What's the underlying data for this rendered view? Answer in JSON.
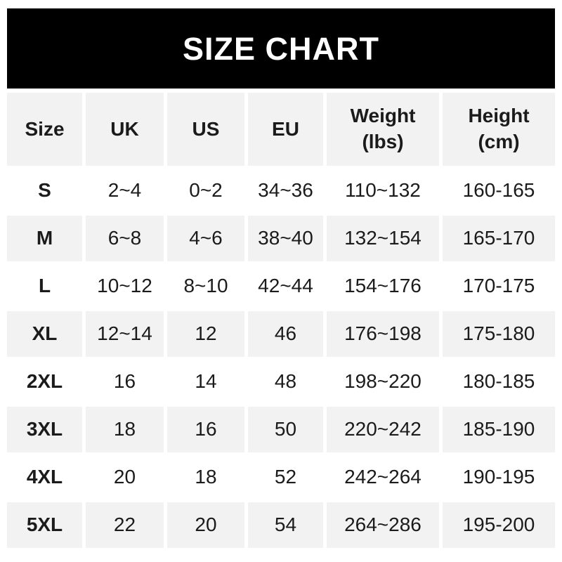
{
  "header": {
    "title": "SIZE CHART"
  },
  "table": {
    "columns": [
      {
        "key": "size",
        "label": "Size",
        "sub": ""
      },
      {
        "key": "uk",
        "label": "UK",
        "sub": ""
      },
      {
        "key": "us",
        "label": "US",
        "sub": ""
      },
      {
        "key": "eu",
        "label": "EU",
        "sub": ""
      },
      {
        "key": "weight",
        "label": "Weight",
        "sub": "(lbs)"
      },
      {
        "key": "height",
        "label": "Height",
        "sub": "(cm)"
      }
    ],
    "rows": [
      {
        "size": "S",
        "uk": "2~4",
        "us": "0~2",
        "eu": "34~36",
        "weight": "110~132",
        "height": "160-165"
      },
      {
        "size": "M",
        "uk": "6~8",
        "us": "4~6",
        "eu": "38~40",
        "weight": "132~154",
        "height": "165-170"
      },
      {
        "size": "L",
        "uk": "10~12",
        "us": "8~10",
        "eu": "42~44",
        "weight": "154~176",
        "height": "170-175"
      },
      {
        "size": "XL",
        "uk": "12~14",
        "us": "12",
        "eu": "46",
        "weight": "176~198",
        "height": "175-180"
      },
      {
        "size": "2XL",
        "uk": "16",
        "us": "14",
        "eu": "48",
        "weight": "198~220",
        "height": "180-185"
      },
      {
        "size": "3XL",
        "uk": "18",
        "us": "16",
        "eu": "50",
        "weight": "220~242",
        "height": "185-190"
      },
      {
        "size": "4XL",
        "uk": "20",
        "us": "18",
        "eu": "52",
        "weight": "242~264",
        "height": "190-195"
      },
      {
        "size": "5XL",
        "uk": "22",
        "us": "20",
        "eu": "54",
        "weight": "264~286",
        "height": "195-200"
      }
    ]
  },
  "colors": {
    "title_bg": "#000000",
    "title_text": "#ffffff",
    "row_alt_bg": "#f2f2f2",
    "row_bg": "#ffffff",
    "text": "#1b1b1b"
  },
  "chart_data": {
    "type": "table",
    "title": "SIZE CHART",
    "columns": [
      "Size",
      "UK",
      "US",
      "EU",
      "Weight (lbs)",
      "Height (cm)"
    ],
    "rows": [
      [
        "S",
        "2~4",
        "0~2",
        "34~36",
        "110~132",
        "160-165"
      ],
      [
        "M",
        "6~8",
        "4~6",
        "38~40",
        "132~154",
        "165-170"
      ],
      [
        "L",
        "10~12",
        "8~10",
        "42~44",
        "154~176",
        "170-175"
      ],
      [
        "XL",
        "12~14",
        "12",
        "46",
        "176~198",
        "175-180"
      ],
      [
        "2XL",
        "16",
        "14",
        "48",
        "198~220",
        "180-185"
      ],
      [
        "3XL",
        "18",
        "16",
        "50",
        "220~242",
        "185-190"
      ],
      [
        "4XL",
        "20",
        "18",
        "52",
        "242~264",
        "190-195"
      ],
      [
        "5XL",
        "22",
        "20",
        "54",
        "264~286",
        "195-200"
      ]
    ],
    "layout": {
      "header_row_shaded": true,
      "zebra_striping": "even data rows white, odd shaded",
      "legend": "none",
      "grid": "column/row gutters only"
    }
  }
}
